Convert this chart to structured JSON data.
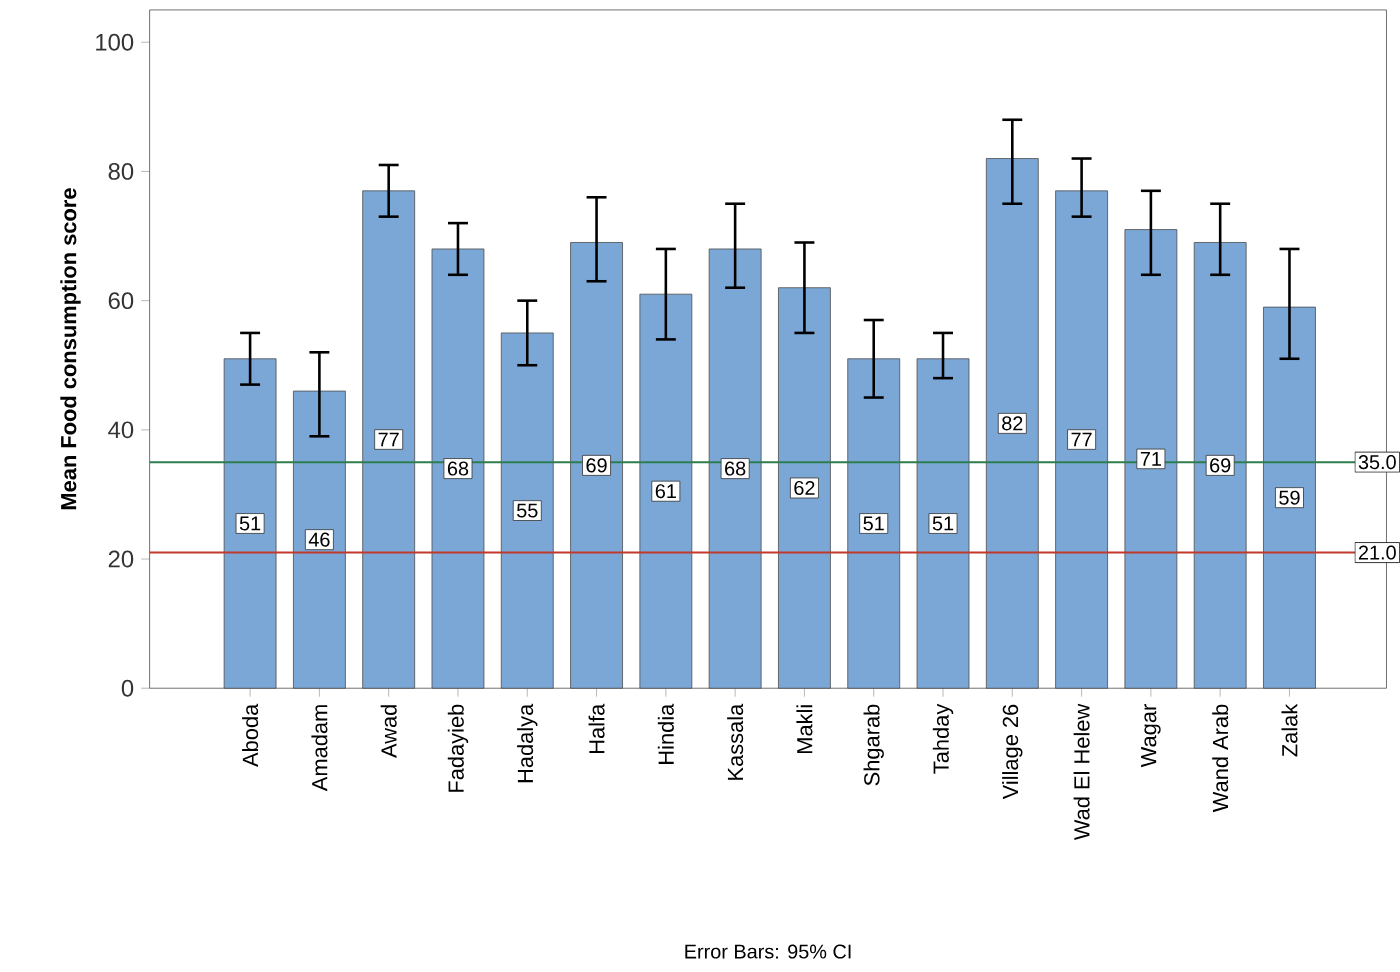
{
  "chart_data": {
    "type": "bar",
    "ylabel": "Mean Food consumption score",
    "categories": [
      "Aboda",
      "Amadam",
      "Awad",
      "Fadayieb",
      "Hadalya",
      "Halfa",
      "Hindia",
      "Kassala",
      "Makli",
      "Shgarab",
      "Tahday",
      "Village 26",
      "Wad El Helew",
      "Wagar",
      "Wand Arab",
      "Zalak"
    ],
    "values": [
      51,
      46,
      77,
      68,
      55,
      69,
      61,
      68,
      62,
      51,
      51,
      82,
      77,
      71,
      69,
      59
    ],
    "errors": [
      [
        47,
        55
      ],
      [
        39,
        52
      ],
      [
        73,
        81
      ],
      [
        64,
        72
      ],
      [
        50,
        60
      ],
      [
        63,
        76
      ],
      [
        54,
        68
      ],
      [
        62,
        75
      ],
      [
        55,
        69
      ],
      [
        45,
        57
      ],
      [
        48,
        55
      ],
      [
        75,
        88
      ],
      [
        73,
        82
      ],
      [
        64,
        77
      ],
      [
        64,
        75
      ],
      [
        51,
        68
      ]
    ],
    "color": "#7ba7d7",
    "data_labels": true,
    "ylim": [
      0,
      105
    ],
    "yticks": [
      0,
      20,
      40,
      60,
      80,
      100
    ],
    "ref_lines": [
      {
        "axis": "y",
        "value": 35,
        "label": "35.0",
        "color": "#2e7d4f"
      },
      {
        "axis": "y",
        "value": 21,
        "label": "21.0",
        "color": "#c0392b"
      }
    ],
    "annotations": [
      "Error Bars: 95% CI"
    ]
  }
}
